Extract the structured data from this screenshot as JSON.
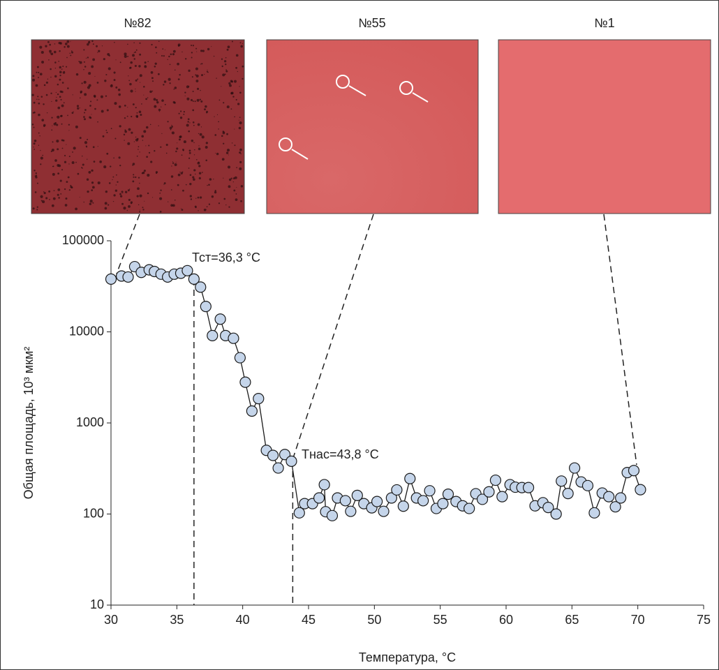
{
  "chart_data": {
    "type": "line",
    "images": [
      "№82",
      "№55",
      "№1"
    ],
    "xlabel": "Температура,  °C",
    "ylabel": "Общая площадь, 10³ мкм²",
    "log_y": true,
    "xlim": [
      30,
      75
    ],
    "xticks": [
      30,
      35,
      40,
      45,
      50,
      55,
      60,
      65,
      70,
      75
    ],
    "ylim": [
      10,
      100000
    ],
    "yticks": [
      10,
      100,
      1000,
      10000,
      100000
    ],
    "marker_color": "#c5d5ea",
    "line_color": "#1a1a1a",
    "annotations": [
      {
        "text": "Тст=36,3 °C",
        "x": 36.3
      },
      {
        "text": "Тнас=43,8 °C",
        "x": 43.8
      }
    ],
    "x": [
      30.0,
      30.8,
      31.3,
      31.8,
      32.3,
      32.9,
      33.3,
      33.8,
      34.3,
      34.8,
      35.3,
      35.8,
      36.3,
      36.8,
      37.2,
      37.7,
      38.3,
      38.7,
      39.3,
      39.8,
      40.2,
      40.7,
      41.2,
      41.8,
      42.3,
      42.7,
      43.2,
      43.7,
      44.3,
      44.7,
      45.3,
      45.8,
      46.2,
      46.3,
      46.8,
      47.2,
      47.8,
      48.2,
      48.7,
      49.2,
      49.8,
      50.2,
      50.7,
      51.3,
      51.7,
      52.2,
      52.7,
      53.2,
      53.7,
      54.2,
      54.7,
      55.2,
      55.6,
      56.2,
      56.7,
      57.2,
      57.7,
      58.2,
      58.7,
      59.2,
      59.7,
      60.3,
      60.7,
      61.2,
      61.7,
      62.2,
      62.8,
      63.2,
      63.8,
      64.2,
      64.7,
      65.2,
      65.7,
      66.2,
      66.7,
      67.3,
      67.8,
      68.3,
      68.7,
      69.2,
      69.7,
      70.2
    ],
    "values": [
      38000,
      41000,
      40000,
      52000,
      45000,
      48000,
      46000,
      43000,
      40000,
      43000,
      44000,
      47000,
      38000,
      31000,
      19000,
      9100,
      13800,
      9100,
      8500,
      5200,
      2800,
      1350,
      1850,
      500,
      440,
      320,
      450,
      380,
      103,
      130,
      130,
      150,
      210,
      106,
      96,
      150,
      140,
      107,
      160,
      130,
      117,
      137,
      107,
      150,
      184,
      122,
      245,
      150,
      140,
      180,
      115,
      130,
      165,
      137,
      123,
      115,
      167,
      145,
      175,
      235,
      155,
      210,
      197,
      195,
      195,
      123,
      133,
      118,
      100,
      230,
      168,
      320,
      225,
      205,
      103,
      170,
      155,
      120,
      150,
      285,
      300,
      185
    ]
  }
}
